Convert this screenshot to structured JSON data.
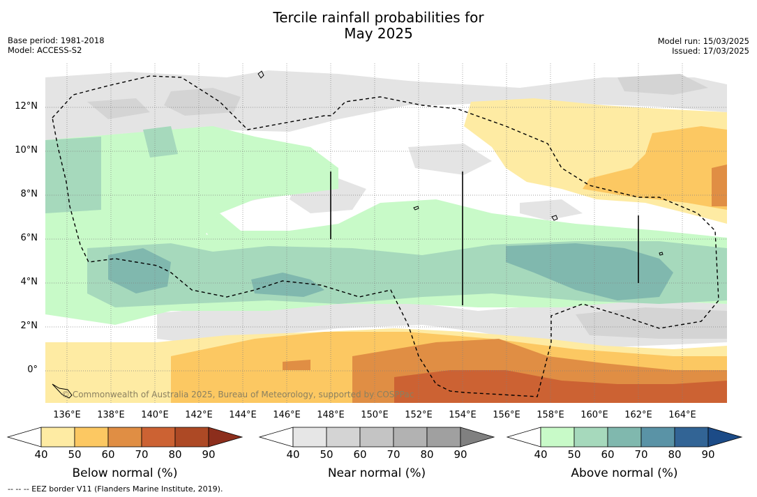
{
  "title_line1": "Tercile rainfall probabilities for",
  "title_line2": "May 2025",
  "base_period": "Base period: 1981-2018",
  "model": "Model: ACCESS-S2",
  "model_run": "Model run: 15/03/2025",
  "issued": "Issued: 17/03/2025",
  "copyright": "© Commonwealth of Australia 2025, Bureau of Meteorology, supported by COSPPac",
  "footnote": "--  --  -- EEZ border V11 (Flanders Marine Institute, 2019).",
  "map": {
    "lat_labels": [
      "12°N",
      "10°N",
      "8°N",
      "6°N",
      "4°N",
      "2°N",
      "0°"
    ],
    "lon_labels": [
      "136°E",
      "138°E",
      "140°E",
      "142°E",
      "144°E",
      "146°E",
      "148°E",
      "150°E",
      "152°E",
      "154°E",
      "156°E",
      "158°E",
      "160°E",
      "162°E",
      "164°E"
    ],
    "lat_values": [
      12,
      10,
      8,
      6,
      4,
      2,
      0
    ],
    "lon_values": [
      136,
      138,
      140,
      142,
      144,
      146,
      148,
      150,
      152,
      154,
      156,
      158,
      160,
      162,
      164
    ],
    "lon_range": [
      134.8,
      165.9
    ],
    "lat_range": [
      -1.5,
      14
    ]
  },
  "colorbars": [
    {
      "title": "Below normal (%)",
      "ticks": [
        "40",
        "50",
        "60",
        "70",
        "80",
        "90"
      ],
      "colors": [
        "#ffffff",
        "#feeba3",
        "#fcc862",
        "#e08e44",
        "#cc6233",
        "#ad4925",
        "#8c2e1c"
      ]
    },
    {
      "title": "Near normal (%)",
      "ticks": [
        "40",
        "50",
        "60",
        "70",
        "80",
        "90"
      ],
      "colors": [
        "#ffffff",
        "#e6e6e6",
        "#d4d4d4",
        "#c4c4c4",
        "#b2b2b2",
        "#a0a0a0",
        "#808080"
      ]
    },
    {
      "title": "Above normal (%)",
      "ticks": [
        "40",
        "50",
        "60",
        "70",
        "80",
        "90"
      ],
      "colors": [
        "#ffffff",
        "#c8fac8",
        "#a6d9bc",
        "#80b8ae",
        "#5a93a6",
        "#326495",
        "#1c4b87"
      ]
    }
  ]
}
